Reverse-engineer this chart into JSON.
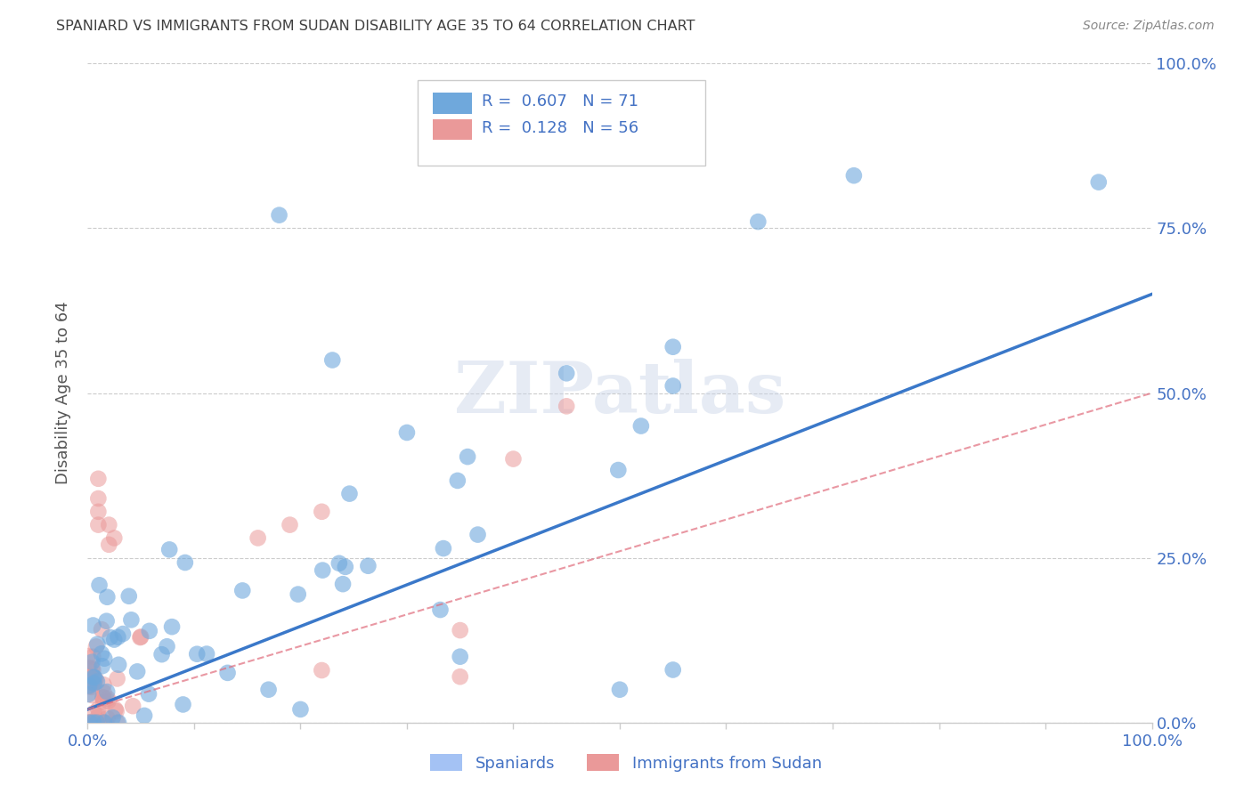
{
  "title": "SPANIARD VS IMMIGRANTS FROM SUDAN DISABILITY AGE 35 TO 64 CORRELATION CHART",
  "source": "Source: ZipAtlas.com",
  "ylabel": "Disability Age 35 to 64",
  "right_ytick_labels": [
    "100.0%",
    "75.0%",
    "50.0%",
    "25.0%",
    "0.0%"
  ],
  "right_ytick_vals": [
    1.0,
    0.75,
    0.5,
    0.25,
    0.0
  ],
  "x_edge_labels": [
    "0.0%",
    "100.0%"
  ],
  "legend_r_n": [
    {
      "r": "0.607",
      "n": "71",
      "color": "#6fa8dc"
    },
    {
      "r": "0.128",
      "n": "56",
      "color": "#ea9999"
    }
  ],
  "bottom_legend": [
    {
      "label": "Spaniards",
      "color": "#a4c2f4"
    },
    {
      "label": "Immigrants from Sudan",
      "color": "#ea9999"
    }
  ],
  "blue_color": "#6fa8dc",
  "pink_color": "#ea9999",
  "blue_line_color": "#3a78c9",
  "pink_line_color": "#e06c7c",
  "watermark_text": "ZIPatlas",
  "background_color": "#ffffff",
  "grid_color": "#cccccc",
  "axis_label_color": "#4472c4",
  "title_color": "#404040",
  "source_color": "#888888",
  "ylabel_color": "#555555",
  "xlim": [
    0,
    1.0
  ],
  "ylim": [
    0,
    1.0
  ],
  "blue_line_x0": 0.0,
  "blue_line_y0": 0.02,
  "blue_line_x1": 1.0,
  "blue_line_y1": 0.65,
  "pink_line_x0": 0.0,
  "pink_line_y0": 0.02,
  "pink_line_x1": 1.0,
  "pink_line_y1": 0.5
}
